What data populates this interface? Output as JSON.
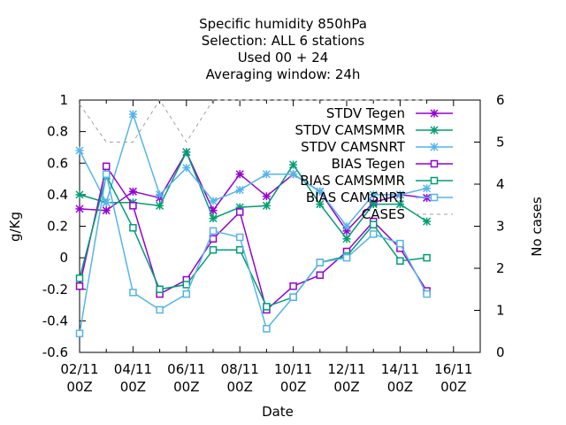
{
  "chart_data": {
    "type": "line",
    "title_lines": [
      "Specific humidity 850hPa",
      "Selection: ALL      6 stations",
      "Used  00 + 24",
      "Averaging window: 24h"
    ],
    "xlabel": "Date",
    "ylabel": "g/Kg",
    "y2label": "No cases",
    "xlim": [
      0,
      15
    ],
    "ylim": [
      -0.6,
      1.0
    ],
    "y2lim": [
      0,
      6
    ],
    "x_ticks": [
      {
        "value": 0,
        "line1": "02/11",
        "line2": "00Z"
      },
      {
        "value": 2,
        "line1": "04/11",
        "line2": "00Z"
      },
      {
        "value": 4,
        "line1": "06/11",
        "line2": "00Z"
      },
      {
        "value": 6,
        "line1": "08/11",
        "line2": "00Z"
      },
      {
        "value": 8,
        "line1": "10/11",
        "line2": "00Z"
      },
      {
        "value": 10,
        "line1": "12/11",
        "line2": "00Z"
      },
      {
        "value": 12,
        "line1": "14/11",
        "line2": "00Z"
      },
      {
        "value": 14,
        "line1": "16/11",
        "line2": "00Z"
      }
    ],
    "y_ticks": [
      "-0.6",
      "-0.4",
      "-0.2",
      "0",
      "0.2",
      "0.4",
      "0.6",
      "0.8",
      "1"
    ],
    "y2_ticks": [
      "0",
      "1",
      "2",
      "3",
      "4",
      "5",
      "6"
    ],
    "x": [
      0,
      1,
      2,
      3,
      4,
      5,
      6,
      7,
      8,
      9,
      10,
      11,
      12,
      13
    ],
    "legend_position": "top-right",
    "series": [
      {
        "name": "STDV Tegen",
        "color": "#9400d3",
        "marker": "star",
        "values": [
          0.31,
          0.3,
          0.42,
          0.38,
          0.67,
          0.3,
          0.53,
          0.39,
          0.53,
          0.42,
          0.17,
          0.35,
          0.4,
          0.38
        ]
      },
      {
        "name": "STDV CAMSMMR",
        "color": "#009e73",
        "marker": "star",
        "values": [
          0.4,
          0.35,
          0.35,
          0.33,
          0.67,
          0.25,
          0.32,
          0.33,
          0.59,
          0.34,
          0.12,
          0.34,
          0.34,
          0.23
        ]
      },
      {
        "name": "STDV CAMSNRT",
        "color": "#56b4e9",
        "marker": "star",
        "values": [
          0.68,
          0.35,
          0.91,
          0.4,
          0.57,
          0.36,
          0.43,
          0.53,
          0.53,
          0.42,
          0.2,
          0.4,
          0.4,
          0.44
        ]
      },
      {
        "name": "BIAS Tegen",
        "color": "#9400d3",
        "marker": "square",
        "values": [
          -0.18,
          0.58,
          0.33,
          -0.23,
          -0.14,
          0.12,
          0.29,
          -0.33,
          -0.18,
          -0.11,
          0.04,
          0.23,
          0.06,
          -0.21
        ]
      },
      {
        "name": "BIAS CAMSMMR",
        "color": "#009e73",
        "marker": "square",
        "values": [
          -0.13,
          0.52,
          0.19,
          -0.2,
          -0.17,
          0.05,
          0.05,
          -0.31,
          -0.25,
          -0.03,
          0.01,
          0.21,
          -0.02,
          0.0
        ]
      },
      {
        "name": "BIAS CAMSNRT",
        "color": "#56b4e9",
        "marker": "square",
        "values": [
          -0.48,
          0.53,
          -0.22,
          -0.33,
          -0.23,
          0.17,
          0.13,
          -0.45,
          -0.25,
          -0.03,
          0.0,
          0.15,
          0.09,
          -0.23
        ]
      },
      {
        "name": "CASES",
        "color": "#a0a0a0",
        "marker": "none",
        "dashed": true,
        "axis": "y2",
        "x": [
          0,
          1,
          2,
          3,
          4,
          5,
          6,
          7,
          8,
          9,
          10,
          11,
          12,
          13
        ],
        "values": [
          5.9,
          5,
          5,
          6,
          5,
          6,
          6,
          6,
          6,
          6,
          6,
          6,
          6,
          6
        ]
      }
    ]
  }
}
